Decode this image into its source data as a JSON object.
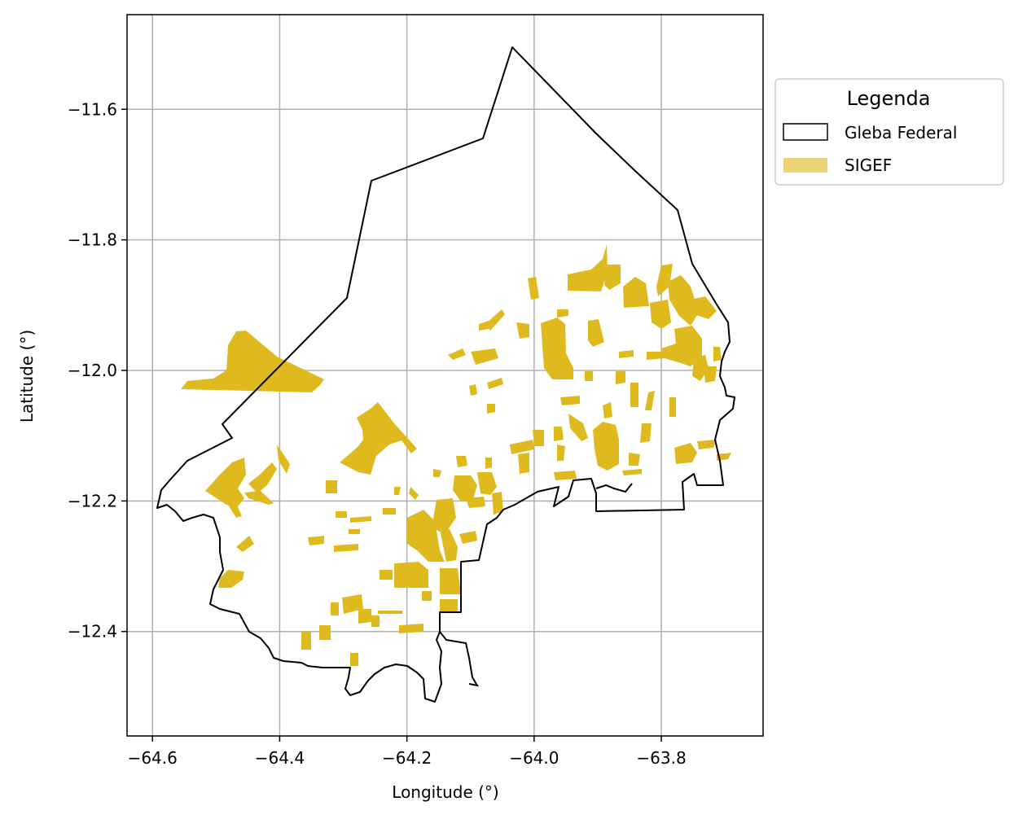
{
  "map": {
    "xlabel": "Longitude (°)",
    "ylabel": "Latitude (°)",
    "xticks": [
      {
        "value": -64.6,
        "label": "−64.6"
      },
      {
        "value": -64.4,
        "label": "−64.4"
      },
      {
        "value": -64.2,
        "label": "−64.2"
      },
      {
        "value": -64.0,
        "label": "−64.0"
      },
      {
        "value": -63.8,
        "label": "−63.8"
      }
    ],
    "yticks": [
      {
        "value": -11.6,
        "label": "−11.6"
      },
      {
        "value": -11.8,
        "label": "−11.8"
      },
      {
        "value": -12.0,
        "label": "−12.0"
      },
      {
        "value": -12.2,
        "label": "−12.2"
      },
      {
        "value": -12.4,
        "label": "−12.4"
      }
    ],
    "xlim": [
      -64.64,
      -63.64
    ],
    "ylim": [
      -12.56,
      -11.455
    ],
    "grid": true,
    "colors": {
      "boundary": "#000000",
      "sigef": "#dfba1e",
      "sigef_legend": "#ecd578",
      "grid": "#b0b0b0"
    }
  },
  "legend": {
    "title": "Legenda",
    "placement": "outside-top-right",
    "items": [
      {
        "label": "Gleba Federal"
      },
      {
        "label": "SIGEF"
      }
    ]
  }
}
